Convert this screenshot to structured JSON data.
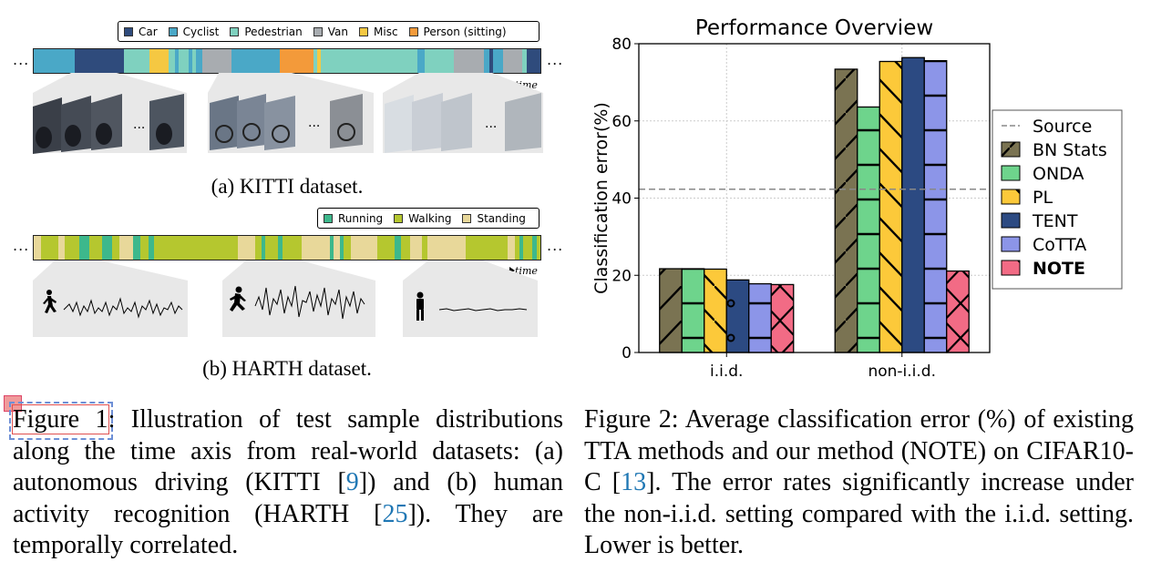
{
  "figure1": {
    "kitti_legend": [
      {
        "label": "Car",
        "color": "#2f4b7c"
      },
      {
        "label": "Cyclist",
        "color": "#4aa8c7"
      },
      {
        "label": "Pedestrian",
        "color": "#7fd1bf"
      },
      {
        "label": "Van",
        "color": "#a8acb0"
      },
      {
        "label": "Misc",
        "color": "#f5c842"
      },
      {
        "label": "Person (sitting)",
        "color": "#f39a3a"
      }
    ],
    "harth_legend": [
      {
        "label": "Running",
        "color": "#3db88c"
      },
      {
        "label": "Walking",
        "color": "#b5c72f"
      },
      {
        "label": "Standing",
        "color": "#e8d89a"
      }
    ],
    "ellipsis": "...",
    "time_label": "time",
    "caption_a": "(a) KITTI dataset.",
    "caption_b": "(b) HARTH dataset.",
    "caption": {
      "label": "Figure 1",
      "text1": ": Illustration of test sample distributions along the time axis from real-world datasets: (a) autonomous driving (KITTI [",
      "ref1": "9",
      "text2": "]) and (b) human activity recognition (HARTH [",
      "ref2": "25",
      "text3": "]). They are temporally correlated."
    }
  },
  "figure2": {
    "caption": {
      "label": "Figure 2",
      "text1": ": Average classification error (%) of existing TTA methods and our method (NOTE) on CIFAR10-C [",
      "ref1": "13",
      "text2": "]. The error rates significantly increase under the non-i.i.d. setting compared with the i.i.d. setting. Lower is better."
    }
  },
  "chart_data": {
    "type": "bar",
    "title": "Performance Overview",
    "xlabel": "",
    "ylabel": "Classification error(%)",
    "ylim": [
      0,
      80
    ],
    "yticks": [
      0,
      20,
      40,
      60,
      80
    ],
    "grid": true,
    "legend_position": "right",
    "categories": [
      "i.i.d.",
      "non-i.i.d."
    ],
    "reference_line": {
      "name": "Source",
      "value": 42.3,
      "style": "dashed",
      "color": "#888888"
    },
    "series": [
      {
        "name": "BN Stats",
        "values": [
          21.7,
          73.4
        ],
        "color": "#7a7352",
        "hatch": "slash"
      },
      {
        "name": "ONDA",
        "values": [
          21.7,
          63.6
        ],
        "color": "#6ed48c",
        "hatch": "hline"
      },
      {
        "name": "PL",
        "values": [
          21.6,
          75.4
        ],
        "color": "#fcc93a",
        "hatch": "backslash"
      },
      {
        "name": "TENT",
        "values": [
          18.8,
          76.4
        ],
        "color": "#2c4a82",
        "hatch": "circle"
      },
      {
        "name": "CoTTA",
        "values": [
          17.8,
          75.6
        ],
        "color": "#8c95e8",
        "hatch": "hline"
      },
      {
        "name": "NOTE",
        "values": [
          17.6,
          21.1
        ],
        "color": "#f26b85",
        "hatch": "cross",
        "bold": true
      }
    ]
  }
}
